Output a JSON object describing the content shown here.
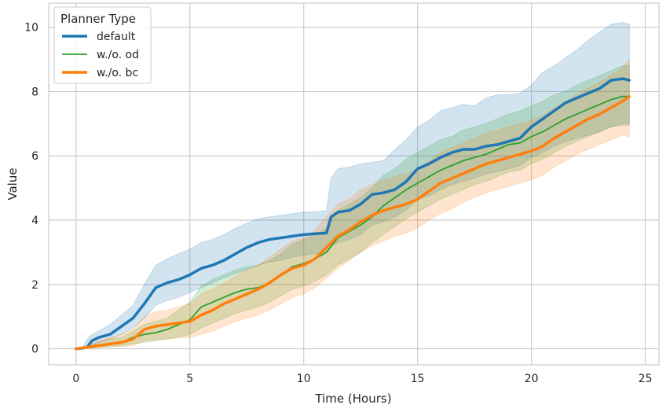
{
  "chart_data": {
    "type": "line",
    "title": "",
    "xlabel": "Time (Hours)",
    "ylabel": "Value",
    "xlim": [
      -1.2,
      25.6
    ],
    "ylim": [
      -0.5,
      10.75
    ],
    "xticks": [
      0,
      5,
      10,
      15,
      20,
      25
    ],
    "yticks": [
      0,
      2,
      4,
      6,
      8,
      10
    ],
    "grid": true,
    "legend": {
      "title": "Planner Type",
      "placement": "top-left"
    },
    "series": [
      {
        "name": "default",
        "color": "#1f77b4",
        "x": [
          0,
          0.3,
          0.5,
          0.7,
          1,
          1.5,
          2,
          2.5,
          3,
          3.5,
          4,
          4.5,
          5,
          5.5,
          6,
          6.5,
          7,
          7.5,
          8,
          8.5,
          9,
          9.5,
          10,
          10.5,
          11,
          11.2,
          11.5,
          12,
          12.5,
          13,
          13.5,
          14,
          14.5,
          15,
          15.5,
          16,
          16.5,
          17,
          17.5,
          18,
          18.5,
          19,
          19.5,
          20,
          20.5,
          21,
          21.5,
          22,
          22.5,
          23,
          23.5,
          24,
          24.3
        ],
        "values": [
          0,
          0.02,
          0.05,
          0.25,
          0.35,
          0.45,
          0.7,
          0.95,
          1.4,
          1.9,
          2.05,
          2.15,
          2.3,
          2.5,
          2.6,
          2.75,
          2.95,
          3.15,
          3.3,
          3.4,
          3.45,
          3.5,
          3.55,
          3.58,
          3.6,
          4.1,
          4.25,
          4.3,
          4.5,
          4.8,
          4.85,
          4.95,
          5.2,
          5.6,
          5.75,
          5.95,
          6.1,
          6.2,
          6.2,
          6.3,
          6.35,
          6.45,
          6.55,
          6.9,
          7.15,
          7.4,
          7.65,
          7.8,
          7.95,
          8.1,
          8.35,
          8.4,
          8.35
        ],
        "lower": [
          0,
          0.02,
          0.05,
          0.1,
          0.2,
          0.3,
          0.45,
          0.65,
          0.95,
          1.35,
          1.5,
          1.6,
          1.75,
          1.9,
          2.05,
          2.2,
          2.35,
          2.45,
          2.6,
          2.7,
          2.75,
          2.85,
          2.9,
          2.95,
          3,
          3.2,
          3.3,
          3.4,
          3.55,
          3.85,
          3.95,
          4.1,
          4.3,
          4.65,
          4.75,
          4.95,
          5.1,
          5.2,
          5.3,
          5.45,
          5.5,
          5.6,
          5.7,
          5.95,
          6.1,
          6.3,
          6.45,
          6.55,
          6.65,
          6.75,
          6.9,
          6.95,
          6.95
        ],
        "upper": [
          0,
          0.05,
          0.3,
          0.45,
          0.55,
          0.75,
          1.05,
          1.35,
          2.0,
          2.6,
          2.8,
          2.95,
          3.1,
          3.3,
          3.4,
          3.55,
          3.75,
          3.9,
          4.05,
          4.1,
          4.15,
          4.2,
          4.25,
          4.25,
          4.3,
          5.3,
          5.6,
          5.65,
          5.75,
          5.8,
          5.85,
          6.2,
          6.5,
          6.9,
          7.1,
          7.4,
          7.5,
          7.6,
          7.55,
          7.8,
          7.9,
          7.9,
          7.95,
          8.2,
          8.6,
          8.8,
          9.05,
          9.3,
          9.6,
          9.85,
          10.1,
          10.15,
          10.1
        ]
      },
      {
        "name": "w./o. od",
        "color": "#2ca02c",
        "x": [
          0,
          0.5,
          1,
          1.5,
          2,
          2.5,
          3,
          3.5,
          4,
          4.5,
          5,
          5.5,
          6,
          6.5,
          7,
          7.5,
          8,
          8.5,
          9,
          9.5,
          10,
          10.5,
          11,
          11.5,
          12,
          12.5,
          13,
          13.5,
          14,
          14.5,
          15,
          15.5,
          16,
          16.5,
          17,
          17.5,
          18,
          18.5,
          19,
          19.5,
          20,
          20.5,
          21,
          21.5,
          22,
          22.5,
          23,
          23.5,
          24,
          24.3
        ],
        "values": [
          0,
          0.03,
          0.1,
          0.15,
          0.2,
          0.35,
          0.45,
          0.5,
          0.6,
          0.75,
          0.9,
          1.3,
          1.45,
          1.6,
          1.75,
          1.85,
          1.9,
          2.05,
          2.3,
          2.55,
          2.65,
          2.8,
          3.0,
          3.45,
          3.65,
          3.85,
          4.1,
          4.45,
          4.7,
          4.95,
          5.15,
          5.35,
          5.55,
          5.7,
          5.85,
          5.95,
          6.05,
          6.2,
          6.35,
          6.4,
          6.6,
          6.75,
          6.95,
          7.15,
          7.3,
          7.45,
          7.6,
          7.75,
          7.85,
          7.85
        ],
        "lower": [
          0,
          0.01,
          0.05,
          0.08,
          0.1,
          0.15,
          0.2,
          0.25,
          0.3,
          0.35,
          0.45,
          0.65,
          0.8,
          0.95,
          1.1,
          1.2,
          1.3,
          1.45,
          1.65,
          1.85,
          1.95,
          2.1,
          2.3,
          2.6,
          2.8,
          3.0,
          3.3,
          3.55,
          3.8,
          4.05,
          4.25,
          4.45,
          4.65,
          4.8,
          4.95,
          5.1,
          5.2,
          5.35,
          5.5,
          5.55,
          5.75,
          5.9,
          6.1,
          6.3,
          6.45,
          6.6,
          6.75,
          6.9,
          7.0,
          7.0
        ],
        "upper": [
          0,
          0.05,
          0.2,
          0.3,
          0.35,
          0.55,
          0.75,
          0.85,
          0.95,
          1.2,
          1.45,
          1.95,
          2.15,
          2.3,
          2.45,
          2.55,
          2.6,
          2.75,
          2.95,
          3.25,
          3.4,
          3.55,
          3.75,
          4.3,
          4.5,
          4.7,
          5.0,
          5.4,
          5.6,
          5.9,
          6.1,
          6.3,
          6.5,
          6.6,
          6.8,
          6.9,
          7.0,
          7.15,
          7.3,
          7.4,
          7.55,
          7.7,
          7.9,
          8.0,
          8.2,
          8.35,
          8.5,
          8.65,
          8.8,
          8.8
        ]
      },
      {
        "name": "w./o. bc",
        "color": "#ff7f0e",
        "x": [
          0,
          0.5,
          1,
          1.5,
          2,
          2.5,
          3,
          3.5,
          4,
          4.5,
          5,
          5.5,
          6,
          6.5,
          7,
          7.5,
          8,
          8.5,
          9,
          9.5,
          10,
          10.5,
          11,
          11.5,
          12,
          12.5,
          13,
          13.5,
          14,
          14.5,
          15,
          15.5,
          16,
          16.5,
          17,
          17.5,
          18,
          18.5,
          19,
          19.5,
          20,
          20.5,
          21,
          21.5,
          22,
          22.5,
          23,
          23.5,
          24,
          24.3
        ],
        "values": [
          0,
          0.05,
          0.1,
          0.15,
          0.2,
          0.3,
          0.6,
          0.7,
          0.75,
          0.8,
          0.85,
          1.05,
          1.2,
          1.4,
          1.55,
          1.7,
          1.85,
          2.05,
          2.3,
          2.5,
          2.6,
          2.8,
          3.15,
          3.5,
          3.7,
          3.95,
          4.15,
          4.3,
          4.4,
          4.5,
          4.65,
          4.9,
          5.15,
          5.3,
          5.45,
          5.6,
          5.75,
          5.85,
          5.95,
          6.05,
          6.15,
          6.3,
          6.55,
          6.75,
          6.95,
          7.15,
          7.3,
          7.5,
          7.7,
          7.85
        ],
        "lower": [
          0,
          0.01,
          0.03,
          0.05,
          0.07,
          0.1,
          0.25,
          0.3,
          0.3,
          0.35,
          0.35,
          0.45,
          0.55,
          0.7,
          0.85,
          0.95,
          1.05,
          1.2,
          1.4,
          1.6,
          1.7,
          1.9,
          2.2,
          2.5,
          2.75,
          3.0,
          3.2,
          3.35,
          3.5,
          3.6,
          3.75,
          4.0,
          4.2,
          4.35,
          4.55,
          4.7,
          4.85,
          4.95,
          5.05,
          5.15,
          5.25,
          5.4,
          5.65,
          5.85,
          6.05,
          6.2,
          6.35,
          6.5,
          6.65,
          6.6
        ],
        "upper": [
          0,
          0.1,
          0.25,
          0.35,
          0.45,
          0.6,
          1.0,
          1.15,
          1.2,
          1.3,
          1.4,
          1.7,
          1.85,
          2.05,
          2.25,
          2.45,
          2.6,
          2.85,
          3.1,
          3.35,
          3.45,
          3.7,
          4.1,
          4.5,
          4.65,
          4.95,
          5.1,
          5.25,
          5.35,
          5.45,
          5.6,
          5.85,
          6.1,
          6.25,
          6.4,
          6.55,
          6.7,
          6.8,
          6.9,
          7.0,
          7.1,
          7.25,
          7.5,
          7.7,
          7.9,
          8.1,
          8.3,
          8.5,
          8.75,
          9.0
        ]
      }
    ]
  }
}
